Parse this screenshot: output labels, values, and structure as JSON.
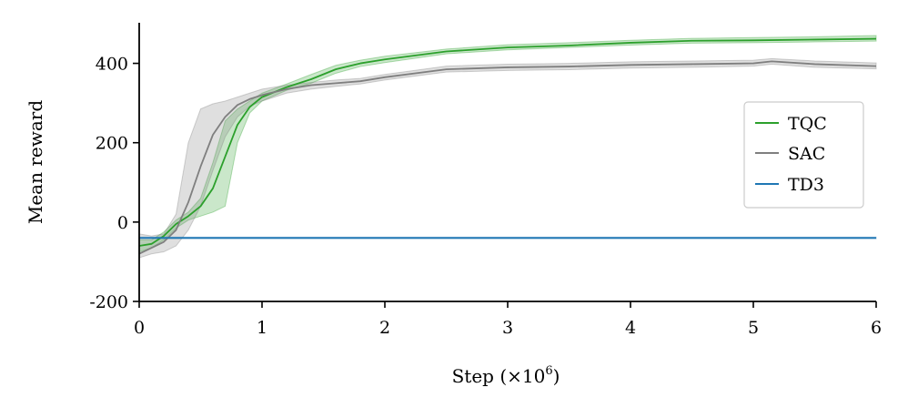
{
  "chart_data": {
    "type": "line",
    "xlabel": "Step (×10",
    "xlabel_exp": "6",
    "xlabel_close": ")",
    "ylabel": "Mean reward",
    "xlim": [
      0,
      6
    ],
    "ylim": [
      -200,
      500
    ],
    "xticks": [
      0,
      1,
      2,
      3,
      4,
      5,
      6
    ],
    "xtick_labels": [
      "0",
      "1",
      "2",
      "3",
      "4",
      "5",
      "6"
    ],
    "yticks": [
      -200,
      0,
      200,
      400
    ],
    "ytick_labels": [
      "-200",
      "0",
      "200",
      "400"
    ],
    "grid": false,
    "legend_position": "center-right",
    "series": [
      {
        "name": "TQC",
        "color": "#2ca02c",
        "x": [
          0,
          0.1,
          0.2,
          0.3,
          0.4,
          0.5,
          0.6,
          0.7,
          0.8,
          0.9,
          1.0,
          1.2,
          1.4,
          1.6,
          1.8,
          2.0,
          2.5,
          3.0,
          3.5,
          4.0,
          4.5,
          5.0,
          5.5,
          6.0
        ],
        "values": [
          -60,
          -55,
          -35,
          -5,
          15,
          40,
          85,
          165,
          245,
          290,
          315,
          340,
          360,
          385,
          400,
          410,
          430,
          440,
          445,
          452,
          457,
          458,
          460,
          462
        ],
        "band_low": [
          -75,
          -65,
          -45,
          -15,
          5,
          15,
          25,
          40,
          200,
          275,
          305,
          332,
          350,
          375,
          392,
          402,
          424,
          434,
          440,
          446,
          451,
          452,
          454,
          456
        ],
        "band_high": [
          -45,
          -45,
          -25,
          5,
          25,
          60,
          150,
          255,
          285,
          305,
          325,
          348,
          372,
          395,
          408,
          418,
          436,
          447,
          452,
          458,
          463,
          465,
          467,
          470
        ]
      },
      {
        "name": "SAC",
        "color": "#7f7f7f",
        "x": [
          0,
          0.1,
          0.2,
          0.3,
          0.4,
          0.5,
          0.6,
          0.7,
          0.8,
          0.9,
          1.0,
          1.2,
          1.4,
          1.6,
          1.8,
          2.0,
          2.5,
          3.0,
          3.5,
          4.0,
          4.5,
          5.0,
          5.15,
          5.5,
          6.0
        ],
        "values": [
          -80,
          -65,
          -50,
          -20,
          50,
          140,
          220,
          265,
          295,
          310,
          320,
          335,
          345,
          350,
          355,
          365,
          385,
          390,
          392,
          396,
          398,
          400,
          405,
          398,
          393
        ],
        "band_low": [
          -90,
          -80,
          -75,
          -60,
          -20,
          40,
          130,
          215,
          265,
          292,
          305,
          325,
          335,
          342,
          348,
          358,
          378,
          382,
          384,
          388,
          390,
          393,
          398,
          390,
          386
        ],
        "band_high": [
          -30,
          -35,
          -30,
          20,
          200,
          285,
          298,
          305,
          315,
          325,
          335,
          345,
          352,
          358,
          362,
          372,
          393,
          398,
          400,
          404,
          406,
          408,
          412,
          406,
          401
        ]
      },
      {
        "name": "TD3",
        "color": "#1f77b4",
        "x": [
          0,
          6
        ],
        "values": [
          -40,
          -40
        ],
        "band_low": [
          -42,
          -42
        ],
        "band_high": [
          -38,
          -38
        ]
      }
    ]
  }
}
